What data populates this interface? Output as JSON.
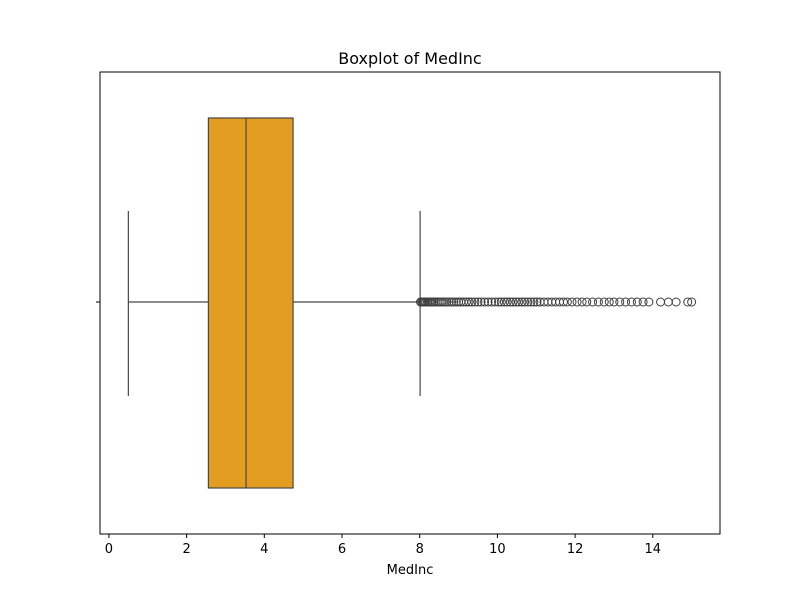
{
  "chart_data": {
    "type": "box",
    "title": "Boxplot of MedInc",
    "xlabel": "MedInc",
    "ylabel": "",
    "orientation": "horizontal",
    "xlim": [
      -0.23,
      15.73
    ],
    "xticks": [
      0,
      2,
      4,
      6,
      8,
      10,
      12,
      14
    ],
    "xtick_labels": [
      "0",
      "2",
      "4",
      "6",
      "8",
      "10",
      "12",
      "14"
    ],
    "grid": false,
    "box": {
      "whisker_low": 0.5,
      "q1": 2.56,
      "median": 3.53,
      "q3": 4.74,
      "whisker_high": 8.01
    },
    "outliers": [
      8.02,
      8.05,
      8.08,
      8.1,
      8.13,
      8.16,
      8.2,
      8.24,
      8.28,
      8.32,
      8.36,
      8.4,
      8.45,
      8.5,
      8.55,
      8.6,
      8.65,
      8.7,
      8.76,
      8.82,
      8.88,
      8.94,
      9.0,
      9.06,
      9.13,
      9.2,
      9.27,
      9.34,
      9.42,
      9.5,
      9.58,
      9.67,
      9.76,
      9.85,
      9.94,
      10.03,
      10.1,
      10.18,
      10.25,
      10.33,
      10.4,
      10.48,
      10.55,
      10.63,
      10.7,
      10.78,
      10.86,
      10.94,
      11.02,
      11.1,
      11.2,
      11.3,
      11.4,
      11.5,
      11.6,
      11.7,
      11.8,
      11.92,
      12.05,
      12.18,
      12.3,
      12.45,
      12.6,
      12.75,
      12.88,
      13.0,
      13.15,
      13.3,
      13.45,
      13.6,
      13.75,
      13.9,
      14.2,
      14.4,
      14.6,
      14.9,
      15.0
    ],
    "colors": {
      "box_fill": "#e39e21",
      "line": "#474747",
      "outlier_edge": "#3f3f3f"
    }
  }
}
